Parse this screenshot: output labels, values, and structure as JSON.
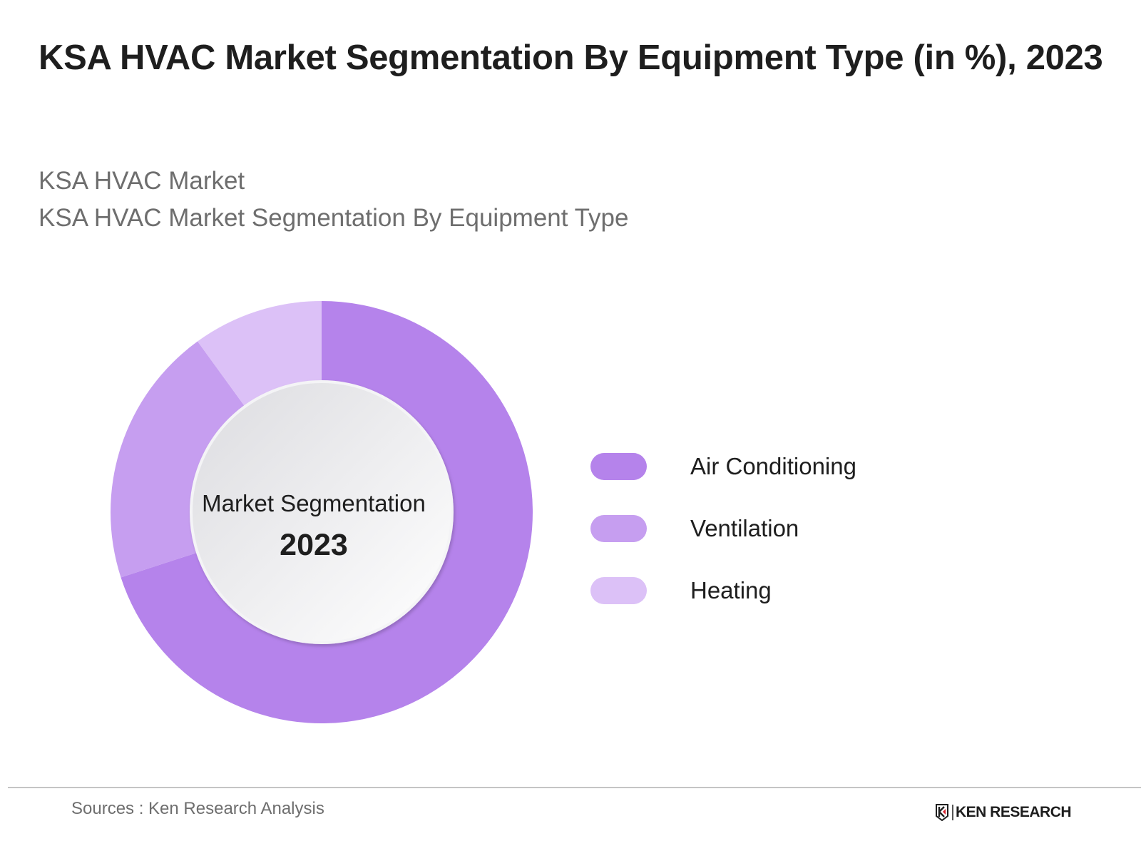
{
  "header": {
    "title": "KSA HVAC Market Segmentation By Equipment Type (in %), 2023",
    "subtitle_line1": "KSA HVAC Market",
    "subtitle_line2": "KSA HVAC Market Segmentation By Equipment Type"
  },
  "donut": {
    "center_label": "Market Segmentation",
    "center_year": "2023"
  },
  "legend": [
    {
      "label": "Air Conditioning",
      "color": "#b583eb"
    },
    {
      "label": "Ventilation",
      "color": "#c69ef0"
    },
    {
      "label": "Heating",
      "color": "#dcc1f7"
    }
  ],
  "footer": {
    "source": "Sources : Ken Research Analysis",
    "logo_text": "KEN RESEARCH"
  },
  "chart_data": {
    "type": "pie",
    "variant": "donut",
    "title": "KSA HVAC Market Segmentation By Equipment Type (in %), 2023",
    "categories": [
      "Air Conditioning",
      "Ventilation",
      "Heating"
    ],
    "values": [
      70,
      20,
      10
    ],
    "colors": [
      "#b583eb",
      "#c69ef0",
      "#dcc1f7"
    ],
    "center_text": [
      "Market Segmentation",
      "2023"
    ],
    "legend_position": "right",
    "data_labels": false
  }
}
